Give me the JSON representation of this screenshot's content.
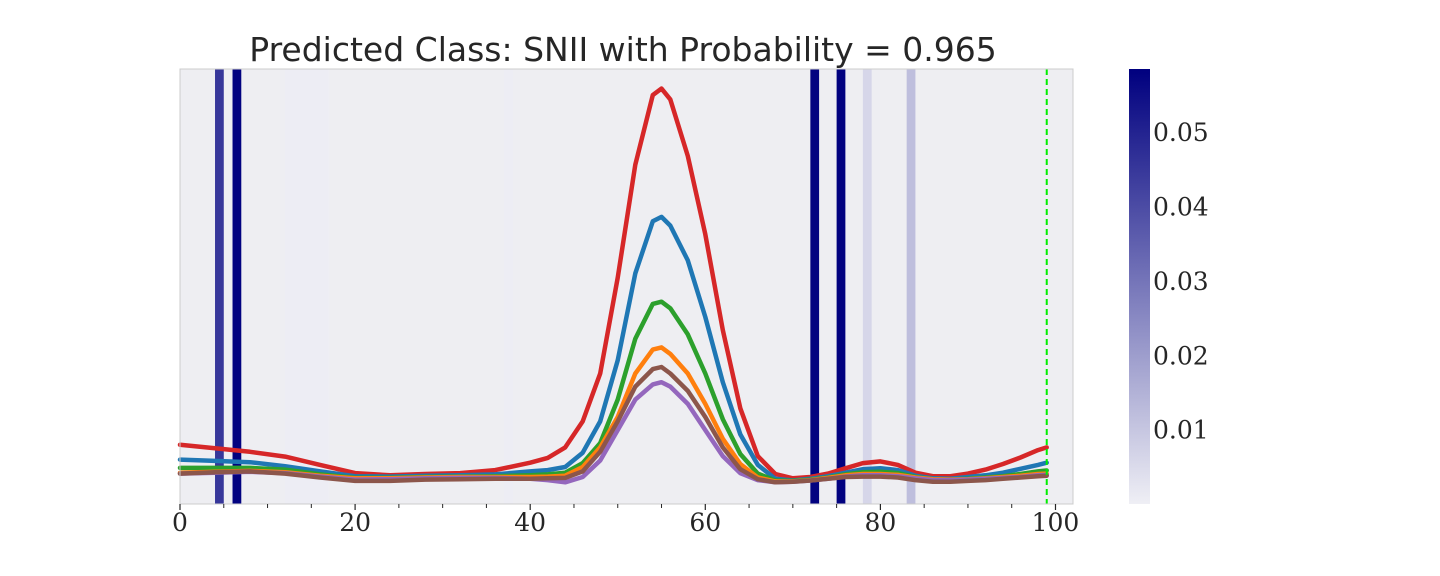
{
  "chart_data": {
    "type": "line",
    "title": "Predicted Class: SNII with Probability = 0.965",
    "xlabel": "",
    "ylabel": "",
    "xlim": [
      0,
      102
    ],
    "ylim": [
      0,
      1
    ],
    "grid": false,
    "xticks": [
      0,
      20,
      40,
      60,
      80,
      100
    ],
    "xticks_minor": [
      5,
      10,
      15,
      25,
      30,
      35,
      45,
      50,
      55,
      65,
      70,
      75,
      85,
      90,
      95
    ],
    "background_color": "#eeeef2",
    "cursor": {
      "x": 99,
      "color": "#00ee00"
    },
    "attention_bands": [
      {
        "x0": 4,
        "x1": 5,
        "value": 0.045
      },
      {
        "x0": 6,
        "x1": 7,
        "value": 0.058
      },
      {
        "x0": 72,
        "x1": 73,
        "value": 0.058
      },
      {
        "x0": 75,
        "x1": 76,
        "value": 0.058
      },
      {
        "x0": 78,
        "x1": 79,
        "value": 0.006
      },
      {
        "x0": 83,
        "x1": 84,
        "value": 0.012
      },
      {
        "x0": 12,
        "x1": 17,
        "value": 0.0005
      },
      {
        "x0": 37,
        "x1": 38,
        "value": 0.0006
      }
    ],
    "colorbar": {
      "min": 0.0,
      "max": 0.0585,
      "ticks": [
        0.01,
        0.02,
        0.03,
        0.04,
        0.05
      ],
      "tick_labels": [
        "0.01",
        "0.02",
        "0.03",
        "0.04",
        "0.05"
      ],
      "color_low": "#efeff5",
      "color_high": "#00007f"
    },
    "x": [
      0,
      4,
      8,
      12,
      16,
      20,
      24,
      28,
      32,
      36,
      40,
      42,
      44,
      46,
      48,
      50,
      52,
      54,
      55,
      56,
      58,
      60,
      62,
      64,
      66,
      68,
      70,
      72,
      74,
      76,
      78,
      80,
      82,
      84,
      86,
      88,
      90,
      92,
      94,
      96,
      98,
      99
    ],
    "series": [
      {
        "color": "#d62728",
        "values": [
          0.136,
          0.128,
          0.12,
          0.109,
          0.09,
          0.071,
          0.066,
          0.069,
          0.071,
          0.078,
          0.095,
          0.106,
          0.13,
          0.19,
          0.3,
          0.52,
          0.78,
          0.94,
          0.955,
          0.93,
          0.8,
          0.62,
          0.4,
          0.22,
          0.11,
          0.069,
          0.059,
          0.062,
          0.07,
          0.082,
          0.094,
          0.098,
          0.09,
          0.072,
          0.064,
          0.064,
          0.07,
          0.079,
          0.092,
          0.107,
          0.124,
          0.13
        ]
      },
      {
        "color": "#1f77b4",
        "values": [
          0.102,
          0.099,
          0.096,
          0.087,
          0.075,
          0.064,
          0.063,
          0.065,
          0.066,
          0.068,
          0.075,
          0.078,
          0.085,
          0.118,
          0.19,
          0.33,
          0.53,
          0.65,
          0.66,
          0.64,
          0.56,
          0.43,
          0.28,
          0.16,
          0.09,
          0.058,
          0.054,
          0.058,
          0.064,
          0.072,
          0.08,
          0.082,
          0.078,
          0.065,
          0.059,
          0.058,
          0.062,
          0.066,
          0.072,
          0.081,
          0.09,
          0.095
        ]
      },
      {
        "color": "#2ca02c",
        "values": [
          0.083,
          0.083,
          0.083,
          0.079,
          0.068,
          0.06,
          0.06,
          0.062,
          0.063,
          0.064,
          0.066,
          0.068,
          0.072,
          0.094,
          0.14,
          0.24,
          0.38,
          0.46,
          0.465,
          0.45,
          0.39,
          0.3,
          0.195,
          0.115,
          0.07,
          0.054,
          0.053,
          0.056,
          0.061,
          0.068,
          0.073,
          0.074,
          0.071,
          0.062,
          0.057,
          0.056,
          0.058,
          0.061,
          0.064,
          0.069,
          0.075,
          0.077
        ]
      },
      {
        "color": "#ff7f0e",
        "values": [
          0.072,
          0.074,
          0.076,
          0.073,
          0.065,
          0.059,
          0.059,
          0.061,
          0.062,
          0.062,
          0.062,
          0.063,
          0.065,
          0.085,
          0.13,
          0.2,
          0.3,
          0.355,
          0.36,
          0.345,
          0.3,
          0.23,
          0.15,
          0.092,
          0.061,
          0.052,
          0.052,
          0.055,
          0.06,
          0.066,
          0.069,
          0.069,
          0.067,
          0.061,
          0.057,
          0.056,
          0.057,
          0.059,
          0.062,
          0.065,
          0.069,
          0.07
        ]
      },
      {
        "color": "#9467bd",
        "values": [
          0.07,
          0.072,
          0.074,
          0.071,
          0.063,
          0.056,
          0.057,
          0.059,
          0.06,
          0.06,
          0.058,
          0.055,
          0.05,
          0.062,
          0.1,
          0.17,
          0.24,
          0.275,
          0.28,
          0.27,
          0.23,
          0.17,
          0.11,
          0.071,
          0.055,
          0.05,
          0.051,
          0.054,
          0.058,
          0.063,
          0.066,
          0.066,
          0.064,
          0.059,
          0.055,
          0.055,
          0.056,
          0.058,
          0.06,
          0.062,
          0.066,
          0.067
        ]
      },
      {
        "color": "#8c564b",
        "values": [
          0.07,
          0.073,
          0.075,
          0.07,
          0.061,
          0.053,
          0.053,
          0.056,
          0.057,
          0.058,
          0.058,
          0.059,
          0.06,
          0.075,
          0.12,
          0.19,
          0.27,
          0.31,
          0.315,
          0.3,
          0.26,
          0.2,
          0.13,
          0.08,
          0.057,
          0.05,
          0.051,
          0.054,
          0.058,
          0.062,
          0.063,
          0.063,
          0.061,
          0.055,
          0.051,
          0.051,
          0.053,
          0.055,
          0.058,
          0.061,
          0.064,
          0.065
        ]
      }
    ]
  }
}
